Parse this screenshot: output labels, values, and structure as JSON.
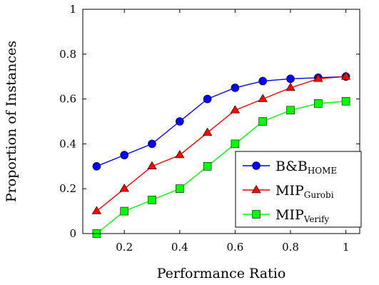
{
  "chart_data": {
    "type": "line",
    "xlabel": "Performance Ratio",
    "ylabel": "Proportion of Instances",
    "xlim": [
      0.05,
      1.05
    ],
    "ylim": [
      0,
      1
    ],
    "xticks": [
      "0.2",
      "0.4",
      "0.6",
      "0.8",
      "1"
    ],
    "xtick_values": [
      0.2,
      0.4,
      0.6,
      0.8,
      1.0
    ],
    "yticks": [
      "0",
      "0.2",
      "0.4",
      "0.6",
      "0.8",
      "1"
    ],
    "ytick_values": [
      0,
      0.2,
      0.4,
      0.6,
      0.8,
      1.0
    ],
    "grid": false,
    "legend_position": "bottom-right",
    "x": [
      0.1,
      0.2,
      0.3,
      0.4,
      0.5,
      0.6,
      0.7,
      0.8,
      0.9,
      1.0
    ],
    "series": [
      {
        "name": "B&B",
        "name_sub": "HOME",
        "color": "#0000ff",
        "marker": "circle",
        "values": [
          0.3,
          0.35,
          0.4,
          0.5,
          0.6,
          0.65,
          0.68,
          0.69,
          0.695,
          0.7
        ]
      },
      {
        "name": "MIP",
        "name_sub": "Gurobi",
        "color": "#ff0000",
        "marker": "triangle",
        "values": [
          0.1,
          0.2,
          0.3,
          0.35,
          0.45,
          0.55,
          0.6,
          0.65,
          0.69,
          0.7
        ]
      },
      {
        "name": "MIP",
        "name_sub": "Verify",
        "color": "#00ff00",
        "marker": "square",
        "values": [
          0.0,
          0.1,
          0.15,
          0.2,
          0.3,
          0.4,
          0.5,
          0.55,
          0.58,
          0.59
        ]
      }
    ]
  }
}
